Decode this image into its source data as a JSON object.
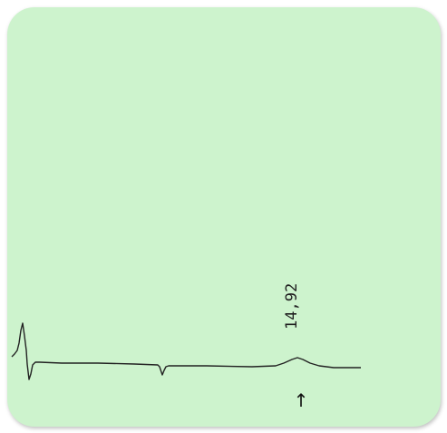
{
  "chart_data": {
    "type": "line",
    "title": "",
    "xlabel": "",
    "ylabel": "",
    "grid": false,
    "peak_annotations": [
      {
        "label": "14,92",
        "retention_time": 14.92,
        "marker": "↑"
      }
    ]
  },
  "colors": {
    "background": "#cdf3cd",
    "trace": "#222222"
  }
}
